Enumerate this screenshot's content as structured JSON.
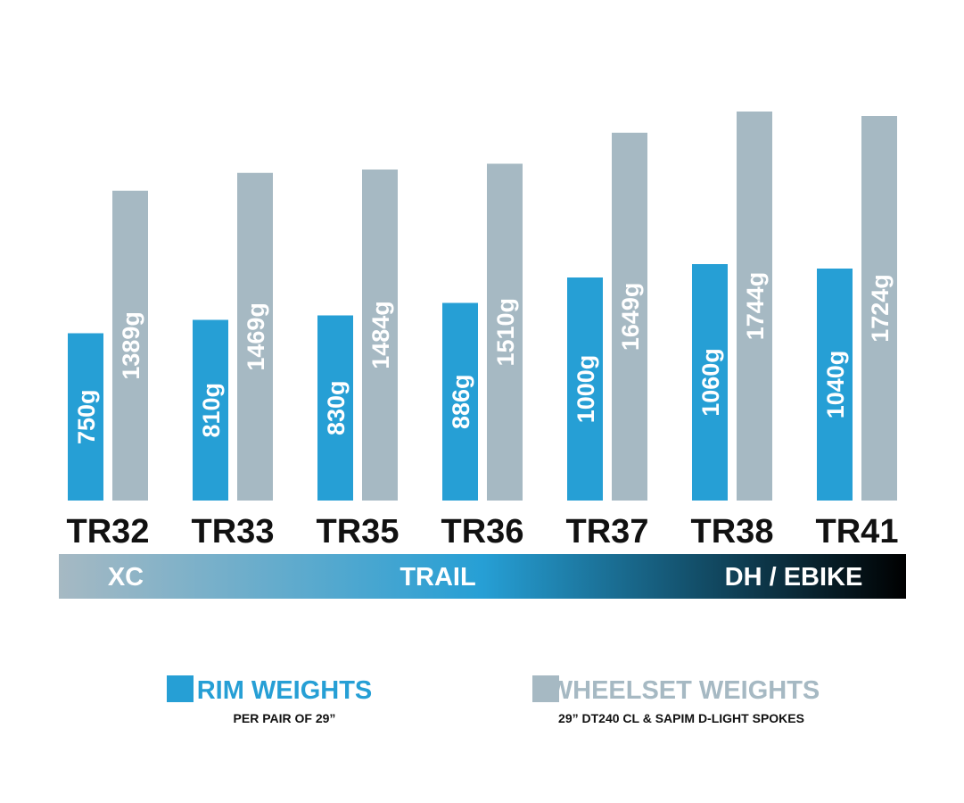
{
  "chart_data": {
    "type": "bar",
    "categories": [
      "TR32",
      "TR33",
      "TR35",
      "TR36",
      "TR37",
      "TR38",
      "TR41"
    ],
    "series": [
      {
        "name": "RIM WEIGHTS",
        "subtitle": "PER PAIR OF 29”",
        "color": "#269fd5",
        "values": [
          750,
          810,
          830,
          886,
          1000,
          1060,
          1040
        ],
        "labels": [
          "750g",
          "810g",
          "830g",
          "886g",
          "1000g",
          "1060g",
          "1040g"
        ]
      },
      {
        "name": "WHEELSET WEIGHTS",
        "subtitle": "29” DT240 CL & SAPIM D-LIGHT SPOKES",
        "color": "#a6b9c3",
        "values": [
          1389,
          1469,
          1484,
          1510,
          1649,
          1744,
          1724
        ],
        "labels": [
          "1389g",
          "1469g",
          "1484g",
          "1510g",
          "1649g",
          "1744g",
          "1724g"
        ]
      }
    ],
    "ylim": [
      0,
      1900
    ],
    "grid": false,
    "legend": "bottom",
    "ranges": [
      "XC",
      "TRAIL",
      "DH / EBIKE"
    ]
  },
  "colors": {
    "band_start": "#a6b9c3",
    "band_mid": "#269fd5",
    "band_end": "#000000",
    "label_light": "#ffffff",
    "label_dark": "#000000"
  }
}
